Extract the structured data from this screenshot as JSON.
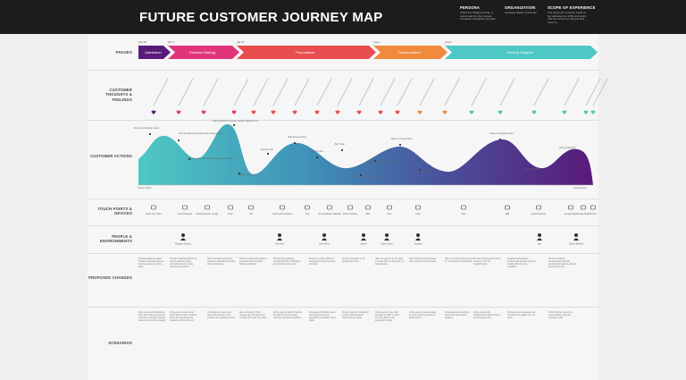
{
  "header": {
    "title": "FUTURE CUSTOMER JOURNEY MAP",
    "persona": {
      "heading": "PERSONA",
      "text": "China from Beijing China, a recent admit to the Human-Computer Interaction program"
    },
    "organization": {
      "heading": "ORGANIZATION",
      "text": "Carnegie Mellon University"
    },
    "scope": {
      "heading": "SCOPE OF EXPERIENCE",
      "text": "The customer's journey starts at her admission to CMU and ends with her arrival on campus and move in"
    }
  },
  "rows": {
    "phases": "PHASES",
    "thoughts": "CUSTOMER THOUGHTS & FEELINGS",
    "actions": "CUSTOMER ACTIONS",
    "touchpoints": "TOUCH POINTS & DEVICES",
    "people": "PEOPLE & ENVIRONMENTS",
    "changes": "PROPOSED CHANGES",
    "scenarios": "SCENARIOS"
  },
  "phases": [
    {
      "label": "Admission",
      "date": "Feb 18",
      "color": "#5a1a7a"
    },
    {
      "label": "Decision Making",
      "date": "Mar 1",
      "color": "#e0357b"
    },
    {
      "label": "Preparation",
      "date": "Apr 15",
      "color": "#e84d4f"
    },
    {
      "label": "Transportation",
      "date": "Aug 1",
      "color": "#f08a3c"
    },
    {
      "label": "Arriving Campus",
      "date": "Aug 8",
      "color": "#4ec8c4"
    }
  ],
  "actions": {
    "start": "Journey Starts",
    "end": "Journey Ends",
    "labels": [
      "Receives Admission Letter",
      "Look for Classmates with social media groups",
      "Connects with classmates through social media",
      "Sign Enrollment Contract, Receive Welcome Kit",
      "Register for Courses",
      "Request I-20",
      "Start house hunting",
      "Apply for Visa",
      "Buy Ticket",
      "Buy and register Phone Card",
      "Make plan for Temporary Housing",
      "Move in to New Home",
      "Attend Orientation",
      "Scope out Neighborhood",
      "Find Bus Station",
      "Arrive at Building"
    ]
  },
  "touchpoints": [
    "Email from CMU",
    "Social Network",
    "Social Network, Google",
    "Help",
    "I-20",
    "Grad Communication",
    "Visa",
    "Visa Application Website",
    "Airline Website",
    "Web",
    "Uber",
    "Help",
    "Web",
    "Mall",
    "Social Network",
    "Google Maps",
    "Google Maps",
    "Chrome"
  ],
  "people": [
    "Program Director",
    "Gift Shelf",
    "Visa Officer",
    "Airport",
    "Hotel Owner",
    "Landlord",
    "Bus",
    "School Building"
  ],
  "changes": [
    "Provide mapping resident location on Google Maps so that the student can find a place",
    "Provide a sharing platform for current students to add information about moving, helping new students",
    "Offer consulting services for students to ask about financial aid or scholarship",
    "Provide student with multiple I-20 as soon as the student finishes enrollment",
    "Provide basic guidance through WeChat or HSI News and email on how to start",
    "Continue to utilize CMU for housing and support process and plans",
    "Provide a checklist for all bureaucratic items",
    "CMU can partner up with Uber to create offers or discounts on transportation",
    "CMU should provide students with a 'How to Connect' guide",
    "Offer events at welcome dinner for new students in Pittsburgh",
    "Provide housing and tutorial to students in the city neighborhoods",
    "Integrate transportation services with campus map and Google Maps for easy navigation",
    "Present interactive transportation map with specific landmarks so students can find their way"
  ],
  "scenarios": [
    "After receiving the admission letter, the student receives an email from a program director welcoming her to the program.",
    "China joins a social media group where current students share tips and discuss the program and life in the city.",
    "China wants to learn more about financial aid, so she contacts the consulting service.",
    "After enrollment, China receives the I-20 documents promptly with clear next steps.",
    "China starts to look for housing through the recommended channels and housing platform.",
    "China gets information about visa requirements and application procedures from a guide.",
    "China checks the checklist to confirm that all required documents are ready.",
    "China uses an Uber offer arranged by CMU to travel from the airport to the temporary housing.",
    "China uses the connect guide to set up a phone card and a bank account.",
    "China attends the welcome dinner and meets fellow students.",
    "China explores the neighborhood with the help of the housing tutorial.",
    "China uses the integrated map to find the bus station near her home.",
    "China finds her way to the school building using the interactive map."
  ]
}
